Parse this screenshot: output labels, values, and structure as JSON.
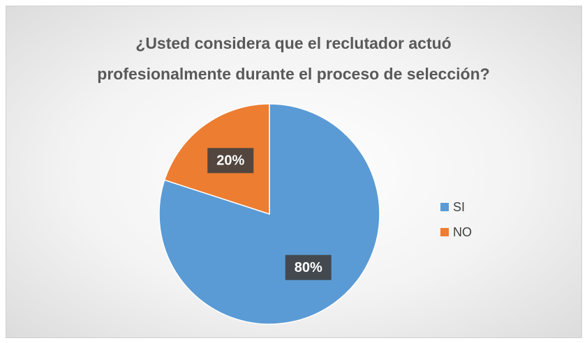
{
  "chart_data": {
    "type": "pie",
    "title": "¿Usted considera que el reclutador actuó profesionalmente durante el proceso de selección?",
    "categories": [
      "SI",
      "NO"
    ],
    "values": [
      80,
      20
    ],
    "value_labels": [
      "80%",
      "20%"
    ],
    "colors": [
      "#5b9bd5",
      "#ed7d31"
    ],
    "legend": "right"
  }
}
